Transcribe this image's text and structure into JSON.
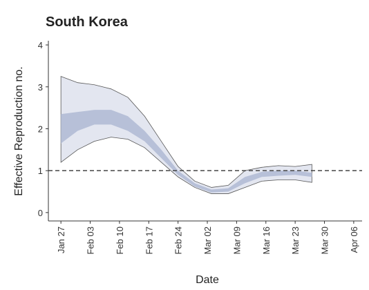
{
  "chart_data": {
    "type": "band",
    "title": "South Korea",
    "xlabel": "Date",
    "ylabel": "Effective Reproduction no.",
    "x": [
      0,
      4,
      8,
      12,
      16,
      20,
      24,
      28,
      32,
      36,
      40,
      44,
      48,
      52,
      56,
      60
    ],
    "series": [
      {
        "color": "#e3e6f0",
        "stroke": "#555555",
        "upper": [
          3.25,
          3.1,
          3.05,
          2.95,
          2.75,
          2.3,
          1.7,
          1.1,
          0.75,
          0.6,
          0.65,
          1.0,
          1.08,
          1.12,
          1.1,
          1.15
        ],
        "lower": [
          1.2,
          1.5,
          1.7,
          1.8,
          1.75,
          1.55,
          1.2,
          0.85,
          0.6,
          0.45,
          0.45,
          0.6,
          0.75,
          0.78,
          0.78,
          0.72
        ]
      },
      {
        "color": "#b7c0d8",
        "upper": [
          2.35,
          2.4,
          2.45,
          2.45,
          2.3,
          1.95,
          1.5,
          1.0,
          0.7,
          0.55,
          0.58,
          0.85,
          0.97,
          1.0,
          1.0,
          0.95
        ],
        "lower": [
          1.65,
          1.95,
          2.1,
          2.1,
          1.95,
          1.7,
          1.3,
          0.9,
          0.62,
          0.48,
          0.5,
          0.7,
          0.85,
          0.88,
          0.9,
          0.85
        ]
      }
    ],
    "hline": 1,
    "xlim": [
      -3,
      72
    ],
    "ylim": [
      -0.2,
      4.1
    ],
    "yticks": [
      0,
      1,
      2,
      3,
      4
    ],
    "xticks": [
      {
        "value": 0,
        "label": "Jan 27"
      },
      {
        "value": 7,
        "label": "Feb 03"
      },
      {
        "value": 14,
        "label": "Feb 10"
      },
      {
        "value": 21,
        "label": "Feb 17"
      },
      {
        "value": 28,
        "label": "Feb 24"
      },
      {
        "value": 35,
        "label": "Mar 02"
      },
      {
        "value": 42,
        "label": "Mar 09"
      },
      {
        "value": 49,
        "label": "Mar 16"
      },
      {
        "value": 56,
        "label": "Mar 23"
      },
      {
        "value": 63,
        "label": "Mar 30"
      },
      {
        "value": 70,
        "label": "Apr 06"
      }
    ]
  }
}
